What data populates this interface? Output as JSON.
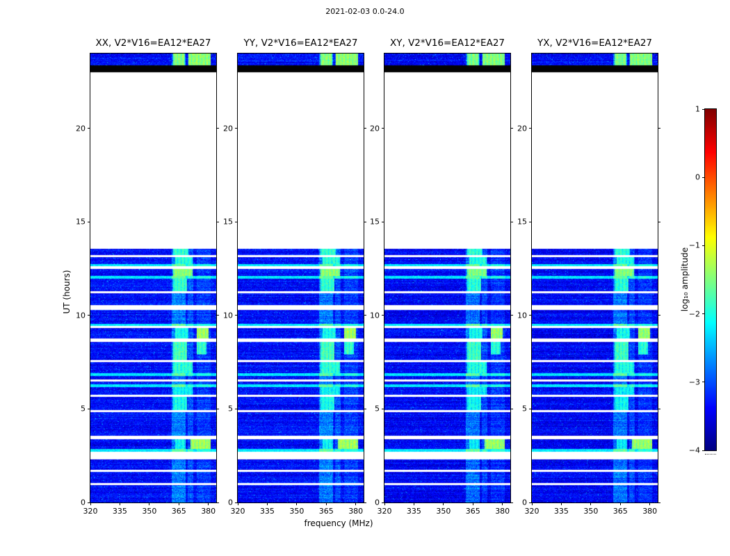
{
  "chart_data": {
    "type": "heatmap",
    "title": "2021-02-03 0.0-24.0",
    "xlabel": "frequency (MHz)",
    "ylabel": "UT (hours)",
    "xlim": [
      320,
      384
    ],
    "ylim": [
      0,
      24
    ],
    "x_ticks": [
      320,
      335,
      350,
      365,
      380
    ],
    "y_ticks": [
      0,
      5,
      10,
      15,
      20
    ],
    "panels": [
      {
        "label": "XX",
        "title": "XX, V2*V16=EA12*EA27",
        "seed": 11,
        "amp_offset": 0
      },
      {
        "label": "YY",
        "title": "YY, V2*V16=EA12*EA27",
        "seed": 22,
        "amp_offset": 0
      },
      {
        "label": "XY",
        "title": "XY, V2*V16=EA12*EA27",
        "seed": 33,
        "amp_offset": -0.06
      },
      {
        "label": "YX",
        "title": "YX, V2*V16=EA12*EA27",
        "seed": 44,
        "amp_offset": -0.06
      }
    ],
    "colorbar": {
      "label": "log₁₀ amplitude",
      "tick_labels": [
        "1",
        "0",
        "−1",
        "−2",
        "−3",
        "−4"
      ],
      "tick_values": [
        1,
        0,
        -1,
        -2,
        -3,
        -4
      ],
      "vmin": -4,
      "vmax": 1,
      "colormap": "jet"
    },
    "background_level": -3.62,
    "data_regions": [
      [
        0,
        13.56
      ],
      [
        23.35,
        24.0
      ]
    ],
    "black_bands": [
      [
        23.0,
        23.35
      ]
    ],
    "white_gaps": [
      [
        0.93,
        1.05
      ],
      [
        1.63,
        1.73
      ],
      [
        2.3,
        2.72
      ],
      [
        3.38,
        3.56
      ],
      [
        4.83,
        4.94
      ],
      [
        5.64,
        5.75
      ],
      [
        6.45,
        6.56
      ],
      [
        7.5,
        7.61
      ],
      [
        8.6,
        8.76
      ],
      [
        9.33,
        9.44
      ],
      [
        10.3,
        10.56
      ],
      [
        11.2,
        11.31
      ],
      [
        12.5,
        12.63
      ],
      [
        13.13,
        13.24
      ]
    ],
    "cyan_lines": [
      [
        2.72,
        2.86
      ],
      [
        6.15,
        6.31
      ],
      [
        6.75,
        6.9
      ],
      [
        9.44,
        9.55
      ],
      [
        11.95,
        12.1
      ],
      [
        12.63,
        12.76
      ]
    ],
    "freq_bands": [
      {
        "f0": 361.5,
        "f1": 368.5,
        "boost": 0.8
      },
      {
        "f0": 369.5,
        "f1": 372.5,
        "boost": 0.5
      },
      {
        "f0": 374.0,
        "f1": 381.0,
        "boost": 0.35
      }
    ],
    "bright_patches": [
      {
        "t0": 2.86,
        "t1": 3.38,
        "f0": 371,
        "f1": 381,
        "amp": -1.0
      },
      {
        "t0": 2.86,
        "t1": 3.38,
        "f0": 363,
        "f1": 368.5,
        "amp": -1.8
      },
      {
        "t0": 4.94,
        "t1": 5.64,
        "f0": 362,
        "f1": 369,
        "amp": -1.7
      },
      {
        "t0": 5.75,
        "t1": 6.15,
        "f0": 362,
        "f1": 372,
        "amp": -1.8
      },
      {
        "t0": 6.9,
        "t1": 7.5,
        "f0": 362,
        "f1": 372,
        "amp": -1.6
      },
      {
        "t0": 7.61,
        "t1": 8.6,
        "f0": 362,
        "f1": 369,
        "amp": -1.45
      },
      {
        "t0": 7.9,
        "t1": 8.6,
        "f0": 374,
        "f1": 379,
        "amp": -1.55
      },
      {
        "t0": 8.76,
        "t1": 9.33,
        "f0": 374,
        "f1": 380,
        "amp": -1.0
      },
      {
        "t0": 8.76,
        "t1": 9.33,
        "f0": 363,
        "f1": 370,
        "amp": -1.7
      },
      {
        "t0": 11.31,
        "t1": 11.95,
        "f0": 362,
        "f1": 369,
        "amp": -1.55
      },
      {
        "t0": 12.1,
        "t1": 12.5,
        "f0": 362,
        "f1": 372,
        "amp": -1.1
      },
      {
        "t0": 12.76,
        "t1": 13.13,
        "f0": 363,
        "f1": 372,
        "amp": -1.6
      },
      {
        "t0": 13.24,
        "t1": 13.56,
        "f0": 362,
        "f1": 370,
        "amp": -1.55
      },
      {
        "t0": 23.35,
        "t1": 24.0,
        "f0": 362,
        "f1": 368,
        "amp": -1.15
      },
      {
        "t0": 23.35,
        "t1": 24.0,
        "f0": 370,
        "f1": 381,
        "amp": -1.1
      }
    ]
  }
}
